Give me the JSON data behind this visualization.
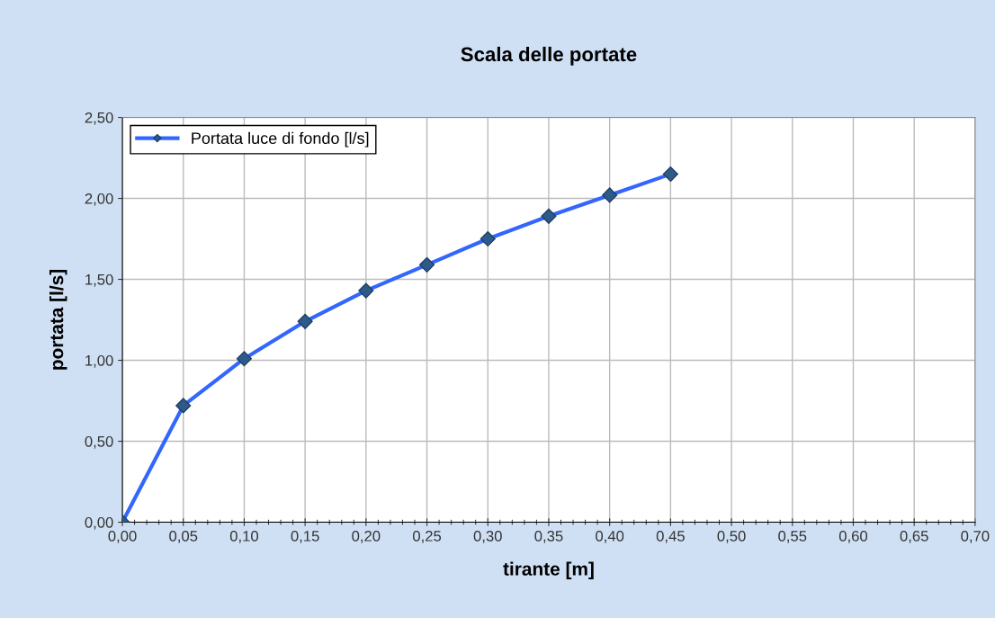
{
  "chart_data": {
    "type": "line",
    "title": "Scala delle portate",
    "xlabel": "tirante [m]",
    "ylabel": "portata [l/s]",
    "x": [
      0,
      0.05,
      0.1,
      0.15,
      0.2,
      0.25,
      0.3,
      0.35,
      0.4,
      0.45
    ],
    "series": [
      {
        "name": "Portata luce di fondo [l/s]",
        "color": "#3366ff",
        "values": [
          0,
          0.72,
          1.01,
          1.24,
          1.43,
          1.59,
          1.75,
          1.89,
          2.02,
          2.15
        ]
      }
    ],
    "xlim": [
      0,
      0.7
    ],
    "xticks": [
      {
        "value": 0,
        "label": "0,00"
      },
      {
        "value": 0.05,
        "label": "0,05"
      },
      {
        "value": 0.1,
        "label": "0,10"
      },
      {
        "value": 0.15,
        "label": "0,15"
      },
      {
        "value": 0.2,
        "label": "0,20"
      },
      {
        "value": 0.25,
        "label": "0,25"
      },
      {
        "value": 0.3,
        "label": "0,30"
      },
      {
        "value": 0.35,
        "label": "0,35"
      },
      {
        "value": 0.4,
        "label": "0,40"
      },
      {
        "value": 0.45,
        "label": "0,45"
      },
      {
        "value": 0.5,
        "label": "0,50"
      },
      {
        "value": 0.55,
        "label": "0,55"
      },
      {
        "value": 0.6,
        "label": "0,60"
      },
      {
        "value": 0.65,
        "label": "0,65"
      },
      {
        "value": 0.7,
        "label": "0,70"
      }
    ],
    "ylim": [
      0,
      2.5
    ],
    "yticks": [
      {
        "value": 0,
        "label": "0,00"
      },
      {
        "value": 0.5,
        "label": "0,50"
      },
      {
        "value": 1.0,
        "label": "1,00"
      },
      {
        "value": 1.5,
        "label": "1,50"
      },
      {
        "value": 2.0,
        "label": "2,00"
      },
      {
        "value": 2.5,
        "label": "2,50"
      }
    ],
    "grid": true,
    "legend": "top left",
    "marker": "diamond",
    "line_style": "solid"
  }
}
